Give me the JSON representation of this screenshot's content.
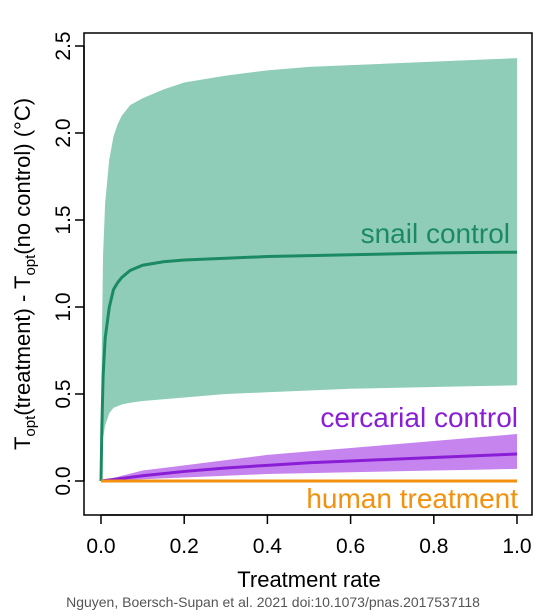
{
  "chart_data": {
    "type": "line",
    "title": "",
    "xlabel": "Treatment rate",
    "ylabel": {
      "prefix_main": "T",
      "prefix_sub": "opt",
      "part1": "(treatment) - T",
      "part1_sub": "opt",
      "part2": "(no control)   (°C)"
    },
    "xlim": [
      0.0,
      1.0
    ],
    "ylim": [
      -0.1,
      2.55
    ],
    "x_ticks": [
      "0.0",
      "0.2",
      "0.4",
      "0.6",
      "0.8",
      "1.0"
    ],
    "y_ticks": [
      "0.0",
      "0.5",
      "1.0",
      "1.5",
      "2.0",
      "2.5"
    ],
    "series": [
      {
        "name": "snail control",
        "color": "#1b8a63",
        "band_color": "#8fcdb8",
        "x": [
          0,
          0.002,
          0.005,
          0.01,
          0.02,
          0.03,
          0.04,
          0.05,
          0.07,
          0.1,
          0.15,
          0.2,
          0.3,
          0.4,
          0.5,
          0.6,
          0.7,
          0.8,
          0.9,
          1.0
        ],
        "y": [
          0,
          0.3,
          0.6,
          0.82,
          1.0,
          1.1,
          1.14,
          1.17,
          1.21,
          1.24,
          1.26,
          1.27,
          1.28,
          1.29,
          1.295,
          1.3,
          1.305,
          1.31,
          1.313,
          1.315
        ],
        "lower": [
          0,
          0.15,
          0.25,
          0.32,
          0.39,
          0.42,
          0.43,
          0.44,
          0.45,
          0.46,
          0.47,
          0.48,
          0.5,
          0.51,
          0.52,
          0.53,
          0.535,
          0.54,
          0.545,
          0.55
        ],
        "upper": [
          0,
          0.8,
          1.3,
          1.6,
          1.85,
          1.98,
          2.05,
          2.1,
          2.16,
          2.2,
          2.25,
          2.29,
          2.33,
          2.36,
          2.38,
          2.39,
          2.4,
          2.41,
          2.42,
          2.43
        ]
      },
      {
        "name": "cercarial control",
        "color": "#8a1ed6",
        "band_color": "#c685ee",
        "x": [
          0,
          0.1,
          0.2,
          0.3,
          0.4,
          0.5,
          0.6,
          0.7,
          0.8,
          0.9,
          1.0
        ],
        "y": [
          0,
          0.03,
          0.055,
          0.075,
          0.09,
          0.105,
          0.115,
          0.125,
          0.135,
          0.145,
          0.155
        ],
        "lower": [
          0,
          0.01,
          0.02,
          0.03,
          0.04,
          0.045,
          0.05,
          0.055,
          0.06,
          0.065,
          0.07
        ],
        "upper": [
          0,
          0.06,
          0.09,
          0.12,
          0.15,
          0.17,
          0.19,
          0.21,
          0.23,
          0.25,
          0.27
        ]
      },
      {
        "name": "human treatment",
        "color": "#f3900d",
        "x": [
          0,
          1.0
        ],
        "y": [
          0,
          0
        ]
      }
    ],
    "legend": "labels-in-plot",
    "grid": false
  },
  "credit": "Nguyen, Boersch-Supan et al. 2021  doi:10.1073/pnas.2017537118"
}
